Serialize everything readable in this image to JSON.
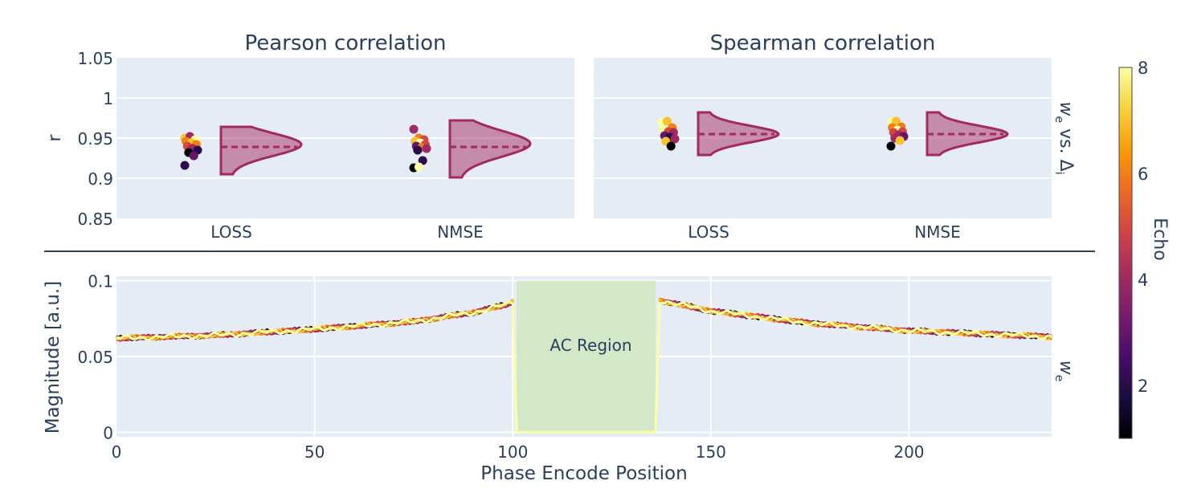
{
  "figure": {
    "colorbar": {
      "title": "Echo",
      "range": [
        1,
        8
      ],
      "ticks": [
        "2",
        "4",
        "6",
        "8"
      ],
      "tick_values": [
        2,
        4,
        6,
        8
      ],
      "colorscale": "inferno",
      "stops": [
        "#000004",
        "#1b0c41",
        "#4a0c6b",
        "#781c6d",
        "#a52c60",
        "#cf4446",
        "#ed6925",
        "#fb9b06",
        "#f7d13d",
        "#fcffa4"
      ]
    },
    "side_labels": {
      "top_main": "w",
      "top_sub": "e",
      "top_mid": " vs. ",
      "top_delta": "Δ",
      "top_delta_sub": "i",
      "bottom_main": "w",
      "bottom_sub": "e"
    },
    "colors": {
      "plot_bg": "#e5ecf6",
      "violin": "#a3295f",
      "violin_fill": "rgba(163,41,95,0.5)",
      "ac_region": "#d2e8c6",
      "divider": "#2a3f5f",
      "text": "#2a3f5f"
    }
  },
  "chart_data": [
    {
      "type": "scatter",
      "subtype": "violin-with-points",
      "title": "Pearson correlation",
      "ylabel": "r",
      "xlabel": "",
      "categories": [
        "LOSS",
        "NMSE"
      ],
      "ylim": [
        0.85,
        1.05
      ],
      "yticks": [
        "0.85",
        "0.9",
        "0.95",
        "1",
        "1.05"
      ],
      "ytick_values": [
        0.85,
        0.9,
        0.95,
        1.0,
        1.05
      ],
      "grid": true,
      "groups": [
        {
          "category": "LOSS",
          "median": 0.939,
          "violin": {
            "min": 0.905,
            "max": 0.964,
            "peak": 0.942
          },
          "points": [
            {
              "r": 0.95,
              "echo": 7
            },
            {
              "r": 0.952,
              "echo": 4
            },
            {
              "r": 0.948,
              "echo": 8
            },
            {
              "r": 0.946,
              "echo": 6
            },
            {
              "r": 0.944,
              "echo": 7
            },
            {
              "r": 0.942,
              "echo": 6
            },
            {
              "r": 0.94,
              "echo": 5
            },
            {
              "r": 0.937,
              "echo": 4
            },
            {
              "r": 0.935,
              "echo": 2
            },
            {
              "r": 0.932,
              "echo": 1
            },
            {
              "r": 0.928,
              "echo": 3
            },
            {
              "r": 0.916,
              "echo": 2
            }
          ]
        },
        {
          "category": "NMSE",
          "median": 0.939,
          "violin": {
            "min": 0.901,
            "max": 0.972,
            "peak": 0.943
          },
          "points": [
            {
              "r": 0.961,
              "echo": 4
            },
            {
              "r": 0.95,
              "echo": 6
            },
            {
              "r": 0.948,
              "echo": 5
            },
            {
              "r": 0.946,
              "echo": 7
            },
            {
              "r": 0.944,
              "echo": 8
            },
            {
              "r": 0.942,
              "echo": 5
            },
            {
              "r": 0.94,
              "echo": 3
            },
            {
              "r": 0.938,
              "echo": 6
            },
            {
              "r": 0.937,
              "echo": 4
            },
            {
              "r": 0.935,
              "echo": 2
            },
            {
              "r": 0.922,
              "echo": 2
            },
            {
              "r": 0.913,
              "echo": 1
            },
            {
              "r": 0.914,
              "echo": 8
            }
          ]
        }
      ]
    },
    {
      "type": "scatter",
      "subtype": "violin-with-points",
      "title": "Spearman correlation",
      "ylabel": "",
      "xlabel": "",
      "categories": [
        "LOSS",
        "NMSE"
      ],
      "ylim": [
        0.85,
        1.05
      ],
      "grid": true,
      "groups": [
        {
          "category": "LOSS",
          "median": 0.955,
          "violin": {
            "min": 0.929,
            "max": 0.982,
            "peak": 0.955
          },
          "points": [
            {
              "r": 0.97,
              "echo": 8
            },
            {
              "r": 0.971,
              "echo": 7
            },
            {
              "r": 0.963,
              "echo": 6
            },
            {
              "r": 0.961,
              "echo": 8
            },
            {
              "r": 0.958,
              "echo": 5
            },
            {
              "r": 0.957,
              "echo": 4
            },
            {
              "r": 0.953,
              "echo": 3
            },
            {
              "r": 0.951,
              "echo": 2
            },
            {
              "r": 0.949,
              "echo": 4
            },
            {
              "r": 0.946,
              "echo": 7
            },
            {
              "r": 0.94,
              "echo": 1
            }
          ]
        },
        {
          "category": "NMSE",
          "median": 0.955,
          "violin": {
            "min": 0.929,
            "max": 0.982,
            "peak": 0.955
          },
          "points": [
            {
              "r": 0.97,
              "echo": 8
            },
            {
              "r": 0.971,
              "echo": 7
            },
            {
              "r": 0.964,
              "echo": 6
            },
            {
              "r": 0.963,
              "echo": 6
            },
            {
              "r": 0.96,
              "echo": 8
            },
            {
              "r": 0.958,
              "echo": 5
            },
            {
              "r": 0.957,
              "echo": 5
            },
            {
              "r": 0.954,
              "echo": 4
            },
            {
              "r": 0.952,
              "echo": 3
            },
            {
              "r": 0.95,
              "echo": 4
            },
            {
              "r": 0.947,
              "echo": 7
            },
            {
              "r": 0.94,
              "echo": 1
            }
          ]
        }
      ]
    },
    {
      "type": "line",
      "title": "",
      "xlabel": "Phase Encode Position",
      "ylabel": "Magnitude [a.u.]",
      "xlim": [
        0,
        236
      ],
      "ylim": [
        -0.003,
        0.103
      ],
      "xticks": [
        "0",
        "50",
        "100",
        "150",
        "200"
      ],
      "xtick_values": [
        0,
        50,
        100,
        150,
        200
      ],
      "yticks": [
        "0",
        "0.05",
        "0.1"
      ],
      "ytick_values": [
        0,
        0.05,
        0.1
      ],
      "grid": true,
      "annotation": {
        "text": "AC Region",
        "x0": 101,
        "x1": 136,
        "y0": 0,
        "y1": 0.1
      },
      "series_echoes": [
        1,
        2,
        3,
        4,
        5,
        6,
        7,
        8
      ],
      "profile_anchor_points": [
        {
          "x": 0,
          "y": 0.062
        },
        {
          "x": 25,
          "y": 0.064
        },
        {
          "x": 50,
          "y": 0.068
        },
        {
          "x": 75,
          "y": 0.073
        },
        {
          "x": 90,
          "y": 0.079
        },
        {
          "x": 98,
          "y": 0.084
        },
        {
          "x": 100,
          "y": 0.086
        },
        {
          "x": 101,
          "y": 0.0
        },
        {
          "x": 136,
          "y": 0.0
        },
        {
          "x": 137,
          "y": 0.087
        },
        {
          "x": 150,
          "y": 0.08
        },
        {
          "x": 175,
          "y": 0.072
        },
        {
          "x": 200,
          "y": 0.067
        },
        {
          "x": 236,
          "y": 0.063
        }
      ]
    }
  ]
}
